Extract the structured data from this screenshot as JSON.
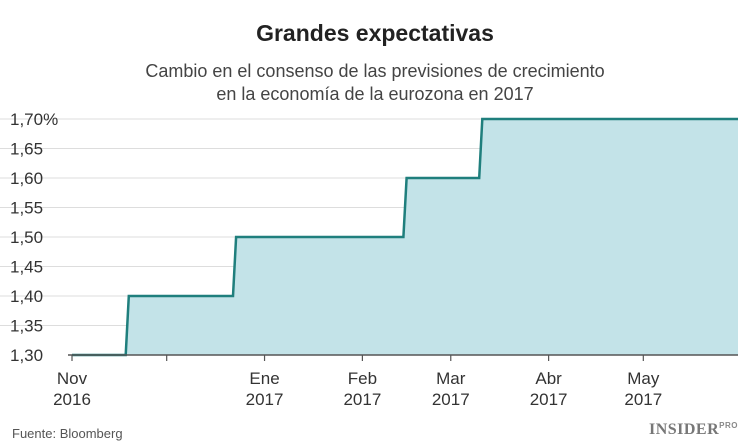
{
  "chart_data": {
    "type": "area",
    "step": true,
    "title": "Grandes expectativas",
    "subtitle_lines": [
      "Cambio en el consenso de las previsiones de crecimiento",
      "en la economía de la eurozona en 2017"
    ],
    "xlabel": "",
    "ylabel": "",
    "ylim": [
      1.3,
      1.7
    ],
    "xlim": [
      "2016-11-01",
      "2017-05-31"
    ],
    "y_ticks": [
      {
        "value": 1.7,
        "label": "1,70%"
      },
      {
        "value": 1.65,
        "label": "1,65"
      },
      {
        "value": 1.6,
        "label": "1,60"
      },
      {
        "value": 1.55,
        "label": "1,55"
      },
      {
        "value": 1.5,
        "label": "1,50"
      },
      {
        "value": 1.45,
        "label": "1,45"
      },
      {
        "value": 1.4,
        "label": "1,40"
      },
      {
        "value": 1.35,
        "label": "1,35"
      },
      {
        "value": 1.3,
        "label": "1,30"
      }
    ],
    "x_ticks": [
      {
        "date": "2016-11-01",
        "line1": "Nov",
        "line2": "2016"
      },
      {
        "date": "2017-01-01",
        "line1": "Ene",
        "line2": "2017"
      },
      {
        "date": "2017-02-01",
        "line1": "Feb",
        "line2": "2017"
      },
      {
        "date": "2017-03-01",
        "line1": "Mar",
        "line2": "2017"
      },
      {
        "date": "2017-04-01",
        "line1": "Abr",
        "line2": "2017"
      },
      {
        "date": "2017-05-01",
        "line1": "May",
        "line2": "2017"
      }
    ],
    "x_minor_ticks": [
      "2016-12-01"
    ],
    "x": [
      "2016-11-01",
      "2016-11-18",
      "2016-11-19",
      "2016-12-22",
      "2016-12-23",
      "2017-02-14",
      "2017-02-15",
      "2017-03-10",
      "2017-03-11",
      "2017-05-04",
      "2017-05-05",
      "2017-05-31"
    ],
    "y": [
      1.3,
      1.3,
      1.4,
      1.4,
      1.5,
      1.5,
      1.6,
      1.6,
      1.7,
      1.7,
      1.7,
      1.7
    ],
    "colors": {
      "line": "#1f7f7d",
      "fill": "#c3e3e8",
      "grid": "#dddddd",
      "axis": "#555555"
    },
    "grid": true
  },
  "footer": {
    "source": "Fuente: Bloomberg",
    "brand": "INSIDER",
    "brand_sup": "PRO"
  }
}
